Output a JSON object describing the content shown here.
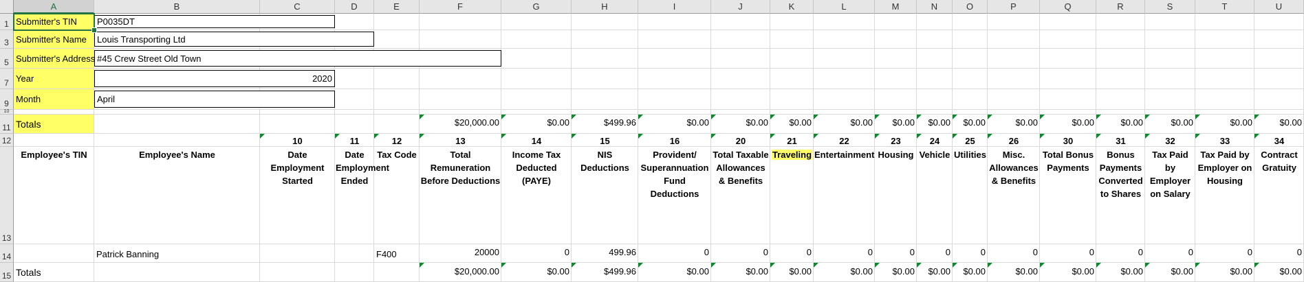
{
  "columns": [
    "A",
    "B",
    "C",
    "D",
    "E",
    "F",
    "G",
    "H",
    "I",
    "J",
    "K",
    "L",
    "M",
    "N",
    "O",
    "P",
    "Q",
    "R",
    "S",
    "T",
    "U"
  ],
  "rows": [
    "1",
    "3",
    "5",
    "7",
    "9",
    "10",
    "11",
    "12",
    "13",
    "14",
    "15"
  ],
  "submitter": {
    "tin_label": "Submitter's TIN",
    "tin_value": "P0035DT",
    "name_label": "Submitter's Name",
    "name_value": "Louis Transporting Ltd",
    "address_label": "Submitter's Address",
    "address_value": "#45 Crew Street Old Town",
    "year_label": "Year",
    "year_value": "2020",
    "month_label": "Month",
    "month_value": "April"
  },
  "totals_label": "Totals",
  "totals_top": [
    "$20,000.00",
    "$0.00",
    "$499.96",
    "$0.00",
    "$0.00",
    "$0.00",
    "$0.00",
    "$0.00",
    "$0.00",
    "$0.00",
    "$0.00",
    "$0.00",
    "$0.00",
    "$0.00",
    "$0.00",
    "$0.00"
  ],
  "codes": [
    "10",
    "11",
    "12",
    "13",
    "14",
    "15",
    "16",
    "20",
    "21",
    "22",
    "23",
    "24",
    "25",
    "26",
    "30",
    "31",
    "32",
    "33",
    "34"
  ],
  "headers": [
    "Employee's TIN",
    "Employee's Name",
    "Date Employment Started",
    "Date Employment Ended",
    "Tax Code",
    "Total Remuneration Before Deductions",
    "Income Tax Deducted (PAYE)",
    "NIS Deductions",
    "Provident/ Superannuation Fund Deductions",
    "Total Taxable Allowances & Benefits",
    "Traveling",
    "Entertainment",
    "Housing",
    "Vehicle",
    "Utilities",
    "Misc. Allowances & Benefits",
    "Total Bonus Payments",
    "Bonus Payments Converted to Shares",
    "Tax Paid by Employer on Salary",
    "Tax Paid by Employer on Housing",
    "Contract Gratuity"
  ],
  "employee_row": {
    "tin": "",
    "name": "Patrick Banning",
    "started": "",
    "ended": "",
    "tax_code": "F400",
    "values": [
      "20000",
      "0",
      "499.96",
      "0",
      "0",
      "0",
      "0",
      "0",
      "0",
      "0",
      "0",
      "0",
      "0",
      "0",
      "0",
      "0"
    ]
  },
  "totals_bottom": [
    "$20,000.00",
    "$0.00",
    "$499.96",
    "$0.00",
    "$0.00",
    "$0.00",
    "$0.00",
    "$0.00",
    "$0.00",
    "$0.00",
    "$0.00",
    "$0.00",
    "$0.00",
    "$0.00",
    "$0.00",
    "$0.00"
  ],
  "colors": {
    "label_highlight": "#ffff66",
    "selection": "#217346",
    "comment_marker": "#0a8a2a"
  }
}
